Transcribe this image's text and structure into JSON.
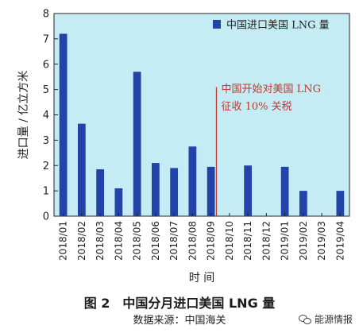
{
  "chart_data": {
    "type": "bar",
    "categories": [
      "2018/01",
      "2018/02",
      "2018/03",
      "2018/04",
      "2018/05",
      "2018/06",
      "2018/07",
      "2018/08",
      "2018/09",
      "2018/10",
      "2018/11",
      "2018/12",
      "2019/01",
      "2019/02",
      "2019/03",
      "2019/04"
    ],
    "series": [
      {
        "name": "中国进口美国 LNG 量",
        "values": [
          7.2,
          3.65,
          1.85,
          1.1,
          5.7,
          2.1,
          1.9,
          2.75,
          1.95,
          0,
          2.0,
          0,
          1.95,
          1.0,
          0,
          1.0
        ]
      }
    ],
    "ylabel": "进口量 / 亿立方米",
    "xlabel": "时 间",
    "ylim": [
      0,
      8
    ],
    "yticks": [
      0,
      1,
      2,
      3,
      4,
      5,
      6,
      7,
      8
    ],
    "grid": false,
    "legend_position": "top-right",
    "annotation": {
      "at_category": "2018/09",
      "lines": [
        "中国开始对美国 LNG",
        "征收 10% 关税"
      ]
    },
    "colors": {
      "bar": "#2443a8",
      "plot_background": "#c5ecf5",
      "annotation": "#c0392b"
    }
  },
  "caption": {
    "title": "图 2　中国分月进口美国 LNG 量",
    "source": "数据来源：中国海关"
  },
  "watermark": {
    "label": "能源情报",
    "icon": "wechat-icon"
  }
}
